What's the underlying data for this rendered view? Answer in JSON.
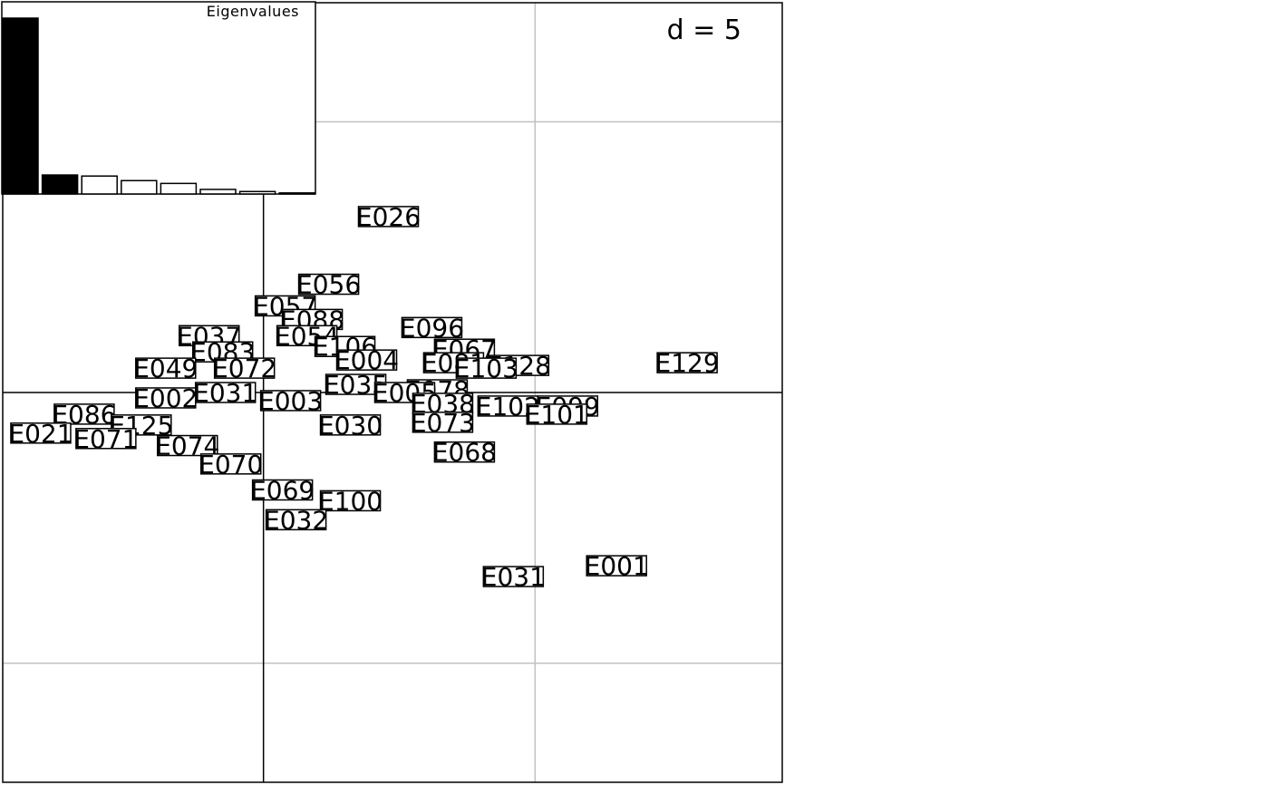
{
  "chart_data": {
    "type": "scatter",
    "title": "",
    "xlabel": "",
    "ylabel": "",
    "grid": true,
    "grid_step_label": "d = 5",
    "xlim": [
      -4.8,
      9.55
    ],
    "ylim": [
      -7.2,
      7.2
    ],
    "grid_lines_x": [
      0,
      5
    ],
    "grid_lines_y": [
      -5,
      0,
      5
    ],
    "axes_origin": [
      0,
      0
    ],
    "points": [
      {
        "label": "E026",
        "x": 2.3,
        "y": 3.25
      },
      {
        "label": "E056",
        "x": 1.2,
        "y": 2.0
      },
      {
        "label": "E057",
        "x": 0.4,
        "y": 1.6
      },
      {
        "label": "E088",
        "x": 0.9,
        "y": 1.35
      },
      {
        "label": "E096",
        "x": 3.1,
        "y": 1.2
      },
      {
        "label": "E037",
        "x": -1.0,
        "y": 1.05
      },
      {
        "label": "E054",
        "x": 0.8,
        "y": 1.05
      },
      {
        "label": "E106",
        "x": 1.5,
        "y": 0.85
      },
      {
        "label": "E067",
        "x": 3.7,
        "y": 0.8
      },
      {
        "label": "E083",
        "x": -0.75,
        "y": 0.75
      },
      {
        "label": "E081",
        "x": 3.5,
        "y": 0.55
      },
      {
        "label": "E004",
        "x": 1.9,
        "y": 0.6
      },
      {
        "label": "E128",
        "x": 4.7,
        "y": 0.5
      },
      {
        "label": "E129",
        "x": 7.8,
        "y": 0.55
      },
      {
        "label": "E103",
        "x": 4.1,
        "y": 0.45
      },
      {
        "label": "E072",
        "x": -0.35,
        "y": 0.45
      },
      {
        "label": "E049",
        "x": -1.8,
        "y": 0.45
      },
      {
        "label": "E035",
        "x": 1.7,
        "y": 0.15
      },
      {
        "label": "E078",
        "x": 3.2,
        "y": 0.05
      },
      {
        "label": "E005",
        "x": 2.6,
        "y": 0.0
      },
      {
        "label": "E031",
        "x": -0.7,
        "y": 0.0
      },
      {
        "label": "E003",
        "x": 0.5,
        "y": -0.15
      },
      {
        "label": "E002",
        "x": -1.8,
        "y": -0.1
      },
      {
        "label": "E038",
        "x": 3.3,
        "y": -0.2
      },
      {
        "label": "E102",
        "x": 4.5,
        "y": -0.25
      },
      {
        "label": "E099",
        "x": 5.6,
        "y": -0.25
      },
      {
        "label": "E101",
        "x": 5.4,
        "y": -0.4
      },
      {
        "label": "E086",
        "x": -3.3,
        "y": -0.4
      },
      {
        "label": "E073",
        "x": 3.3,
        "y": -0.55
      },
      {
        "label": "E030",
        "x": 1.6,
        "y": -0.6
      },
      {
        "label": "E125",
        "x": -2.25,
        "y": -0.6
      },
      {
        "label": "E021",
        "x": -4.1,
        "y": -0.75
      },
      {
        "label": "E071",
        "x": -2.9,
        "y": -0.85
      },
      {
        "label": "E068",
        "x": 3.7,
        "y": -1.1
      },
      {
        "label": "E074",
        "x": -1.4,
        "y": -0.98
      },
      {
        "label": "E070",
        "x": -0.6,
        "y": -1.32
      },
      {
        "label": "E069",
        "x": 0.35,
        "y": -1.8
      },
      {
        "label": "E100",
        "x": 1.6,
        "y": -2.0
      },
      {
        "label": "E032",
        "x": 0.6,
        "y": -2.35
      },
      {
        "label": "E001",
        "x": 6.5,
        "y": -3.2
      },
      {
        "label": "E031",
        "x": 4.6,
        "y": -3.4
      }
    ],
    "inset": {
      "title": "Eigenvalues",
      "type": "bar",
      "values": [
        100,
        10.8,
        10.2,
        7.6,
        6.0,
        2.6,
        1.4,
        0.6
      ],
      "highlighted_count": 2,
      "ylim": [
        0,
        100
      ]
    }
  },
  "colors": {
    "grid": "#c0c0c0",
    "axes": "#000000",
    "frame": "#000000",
    "bar_filled": "#000000",
    "bar_empty": "#ffffff"
  }
}
